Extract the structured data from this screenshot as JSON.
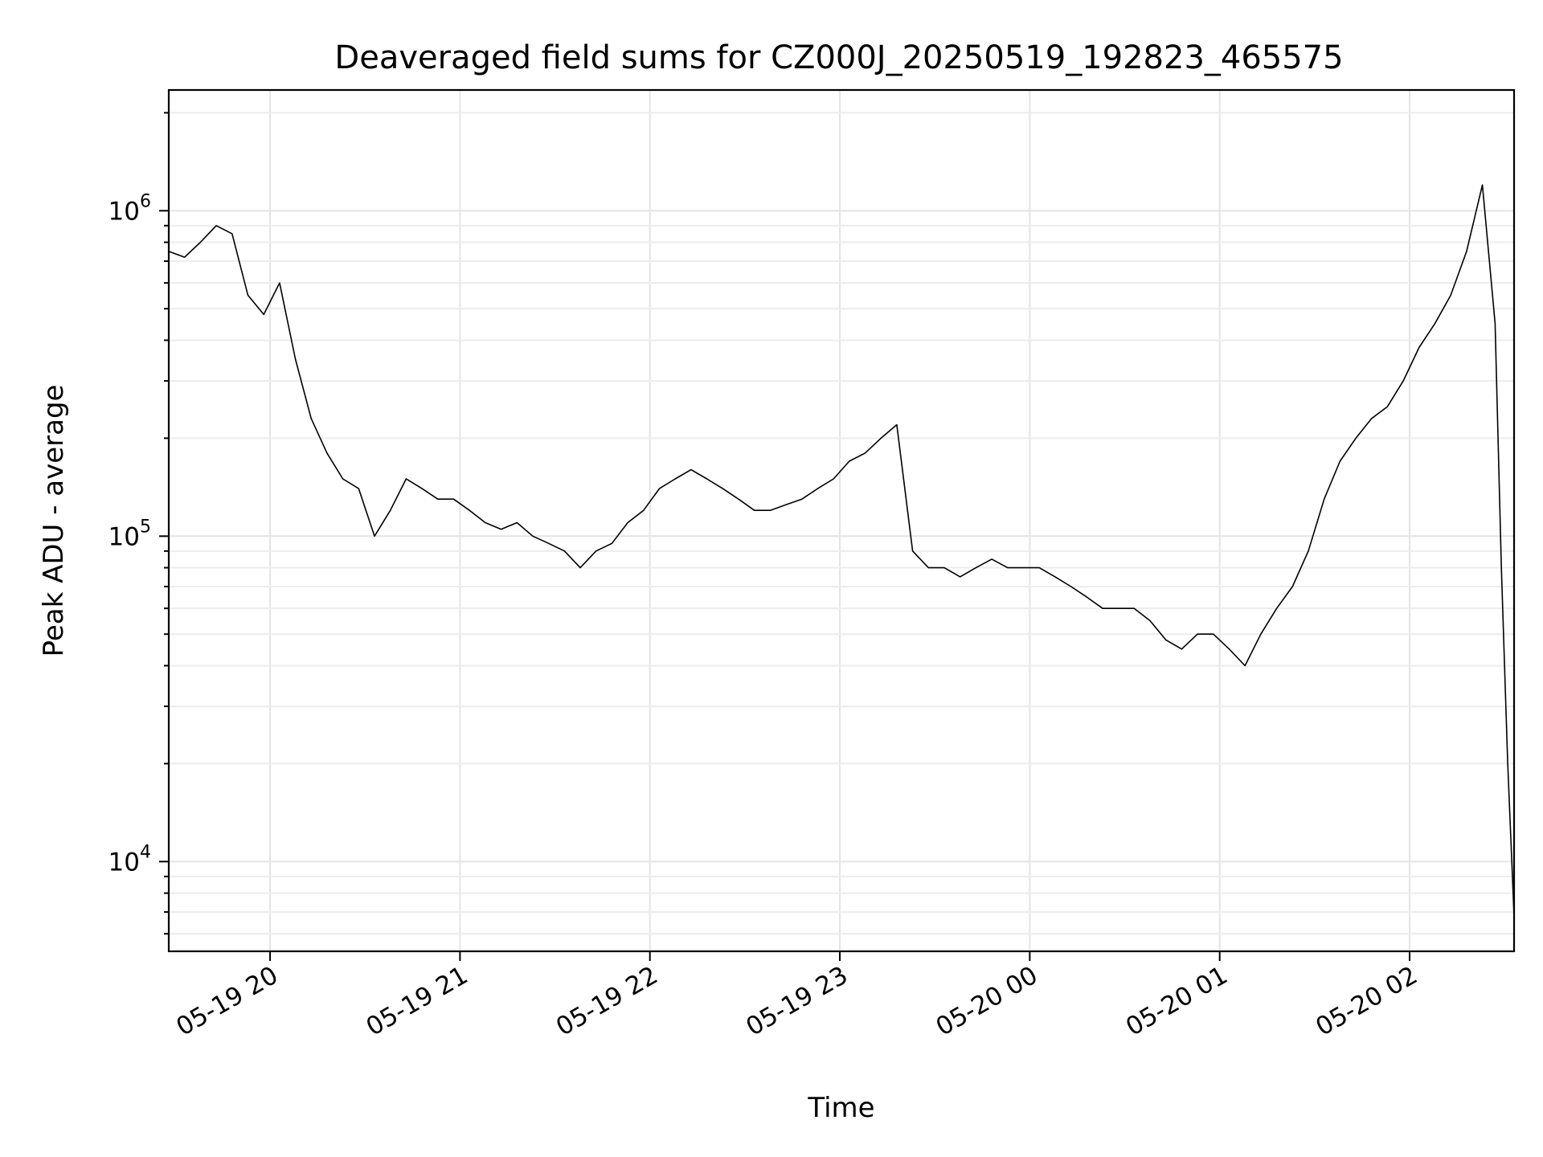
{
  "chart_data": {
    "type": "line",
    "title": "Deaveraged field sums for CZ000J_20250519_192823_465575",
    "xlabel": "Time",
    "ylabel": "Peak ADU - average",
    "y_scale": "log",
    "grid": true,
    "line_color": "#000000",
    "grid_color": "#e4e4e4",
    "xlim": [
      "2025-05-19 19:28",
      "2025-05-20 02:33"
    ],
    "ylim": [
      5300,
      2350000
    ],
    "x_ticks": [
      {
        "value": "2025-05-19 20:00",
        "label": "05-19 20"
      },
      {
        "value": "2025-05-19 21:00",
        "label": "05-19 21"
      },
      {
        "value": "2025-05-19 22:00",
        "label": "05-19 22"
      },
      {
        "value": "2025-05-19 23:00",
        "label": "05-19 23"
      },
      {
        "value": "2025-05-20 00:00",
        "label": "05-20 00"
      },
      {
        "value": "2025-05-20 01:00",
        "label": "05-20 01"
      },
      {
        "value": "2025-05-20 02:00",
        "label": "05-20 02"
      }
    ],
    "y_ticks": [
      {
        "value": 10000,
        "base": "10",
        "exp": "4"
      },
      {
        "value": 100000,
        "base": "10",
        "exp": "5"
      },
      {
        "value": 1000000,
        "base": "10",
        "exp": "6"
      }
    ],
    "series": [
      {
        "points": [
          [
            "2025-05-19 19:28",
            750000
          ],
          [
            "2025-05-19 19:33",
            720000
          ],
          [
            "2025-05-19 19:38",
            800000
          ],
          [
            "2025-05-19 19:43",
            900000
          ],
          [
            "2025-05-19 19:48",
            850000
          ],
          [
            "2025-05-19 19:53",
            550000
          ],
          [
            "2025-05-19 19:58",
            480000
          ],
          [
            "2025-05-19 20:03",
            600000
          ],
          [
            "2025-05-19 20:08",
            350000
          ],
          [
            "2025-05-19 20:13",
            230000
          ],
          [
            "2025-05-19 20:18",
            180000
          ],
          [
            "2025-05-19 20:23",
            150000
          ],
          [
            "2025-05-19 20:28",
            140000
          ],
          [
            "2025-05-19 20:33",
            100000
          ],
          [
            "2025-05-19 20:38",
            120000
          ],
          [
            "2025-05-19 20:43",
            150000
          ],
          [
            "2025-05-19 20:48",
            140000
          ],
          [
            "2025-05-19 20:53",
            130000
          ],
          [
            "2025-05-19 20:58",
            130000
          ],
          [
            "2025-05-19 21:03",
            120000
          ],
          [
            "2025-05-19 21:08",
            110000
          ],
          [
            "2025-05-19 21:13",
            105000
          ],
          [
            "2025-05-19 21:18",
            110000
          ],
          [
            "2025-05-19 21:23",
            100000
          ],
          [
            "2025-05-19 21:28",
            95000
          ],
          [
            "2025-05-19 21:33",
            90000
          ],
          [
            "2025-05-19 21:38",
            80000
          ],
          [
            "2025-05-19 21:43",
            90000
          ],
          [
            "2025-05-19 21:48",
            95000
          ],
          [
            "2025-05-19 21:53",
            110000
          ],
          [
            "2025-05-19 21:58",
            120000
          ],
          [
            "2025-05-19 22:03",
            140000
          ],
          [
            "2025-05-19 22:08",
            150000
          ],
          [
            "2025-05-19 22:13",
            160000
          ],
          [
            "2025-05-19 22:18",
            150000
          ],
          [
            "2025-05-19 22:23",
            140000
          ],
          [
            "2025-05-19 22:28",
            130000
          ],
          [
            "2025-05-19 22:33",
            120000
          ],
          [
            "2025-05-19 22:38",
            120000
          ],
          [
            "2025-05-19 22:43",
            125000
          ],
          [
            "2025-05-19 22:48",
            130000
          ],
          [
            "2025-05-19 22:53",
            140000
          ],
          [
            "2025-05-19 22:58",
            150000
          ],
          [
            "2025-05-19 23:03",
            170000
          ],
          [
            "2025-05-19 23:08",
            180000
          ],
          [
            "2025-05-19 23:13",
            200000
          ],
          [
            "2025-05-19 23:18",
            220000
          ],
          [
            "2025-05-19 23:23",
            90000
          ],
          [
            "2025-05-19 23:28",
            80000
          ],
          [
            "2025-05-19 23:33",
            80000
          ],
          [
            "2025-05-19 23:38",
            75000
          ],
          [
            "2025-05-19 23:43",
            80000
          ],
          [
            "2025-05-19 23:48",
            85000
          ],
          [
            "2025-05-19 23:53",
            80000
          ],
          [
            "2025-05-19 23:58",
            80000
          ],
          [
            "2025-05-20 00:03",
            80000
          ],
          [
            "2025-05-20 00:08",
            75000
          ],
          [
            "2025-05-20 00:13",
            70000
          ],
          [
            "2025-05-20 00:18",
            65000
          ],
          [
            "2025-05-20 00:23",
            60000
          ],
          [
            "2025-05-20 00:28",
            60000
          ],
          [
            "2025-05-20 00:33",
            60000
          ],
          [
            "2025-05-20 00:38",
            55000
          ],
          [
            "2025-05-20 00:43",
            48000
          ],
          [
            "2025-05-20 00:48",
            45000
          ],
          [
            "2025-05-20 00:53",
            50000
          ],
          [
            "2025-05-20 00:58",
            50000
          ],
          [
            "2025-05-20 01:03",
            45000
          ],
          [
            "2025-05-20 01:08",
            40000
          ],
          [
            "2025-05-20 01:13",
            50000
          ],
          [
            "2025-05-20 01:18",
            60000
          ],
          [
            "2025-05-20 01:23",
            70000
          ],
          [
            "2025-05-20 01:28",
            90000
          ],
          [
            "2025-05-20 01:33",
            130000
          ],
          [
            "2025-05-20 01:38",
            170000
          ],
          [
            "2025-05-20 01:43",
            200000
          ],
          [
            "2025-05-20 01:48",
            230000
          ],
          [
            "2025-05-20 01:53",
            250000
          ],
          [
            "2025-05-20 01:58",
            300000
          ],
          [
            "2025-05-20 02:03",
            380000
          ],
          [
            "2025-05-20 02:08",
            450000
          ],
          [
            "2025-05-20 02:13",
            550000
          ],
          [
            "2025-05-20 02:18",
            750000
          ],
          [
            "2025-05-20 02:23",
            1200000
          ],
          [
            "2025-05-20 02:27",
            450000
          ],
          [
            "2025-05-20 02:29",
            80000
          ],
          [
            "2025-05-20 02:31",
            20000
          ],
          [
            "2025-05-20 02:33",
            6800
          ]
        ]
      }
    ]
  }
}
